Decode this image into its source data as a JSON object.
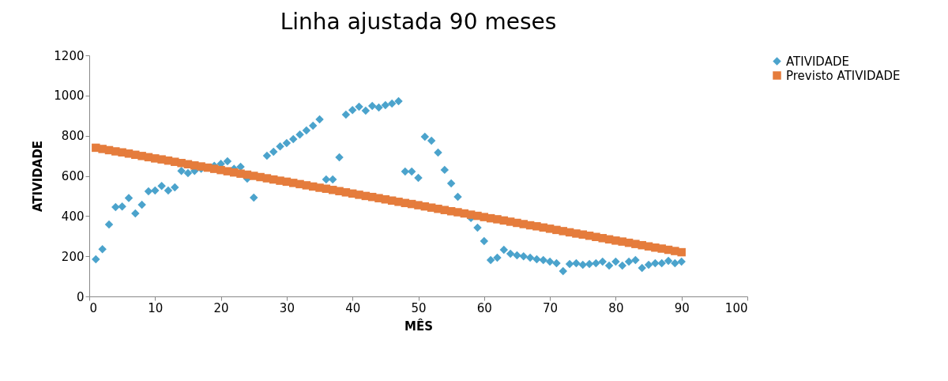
{
  "chart_data": {
    "type": "scatter",
    "title": "Linha ajustada 90 meses",
    "xlabel": "MÊS",
    "ylabel": "ATIVIDADE",
    "x": [
      1,
      2,
      3,
      4,
      5,
      6,
      7,
      8,
      9,
      10,
      11,
      12,
      13,
      14,
      15,
      16,
      17,
      18,
      19,
      20,
      21,
      22,
      23,
      24,
      25,
      26,
      27,
      28,
      29,
      30,
      31,
      32,
      33,
      34,
      35,
      36,
      37,
      38,
      39,
      40,
      41,
      42,
      43,
      44,
      45,
      46,
      47,
      48,
      49,
      50,
      51,
      52,
      53,
      54,
      55,
      56,
      57,
      58,
      59,
      60,
      61,
      62,
      63,
      64,
      65,
      66,
      67,
      68,
      69,
      70,
      71,
      72,
      73,
      74,
      75,
      76,
      77,
      78,
      79,
      80,
      81,
      82,
      83,
      84,
      85,
      86,
      87,
      88,
      89,
      90
    ],
    "series": [
      {
        "name": "ATIVIDADE",
        "color": "#4ba3cc",
        "marker": "diamond",
        "values": [
          185,
          235,
          358,
          445,
          448,
          490,
          413,
          456,
          523,
          527,
          550,
          527,
          543,
          625,
          614,
          625,
          635,
          null,
          650,
          660,
          673,
          635,
          645,
          586,
          492,
          null,
          700,
          720,
          747,
          763,
          783,
          806,
          826,
          850,
          881,
          582,
          582,
          692,
          905,
          928,
          944,
          925,
          948,
          940,
          952,
          960,
          972,
          622,
          622,
          590,
          795,
          775,
          716,
          630,
          563,
          496,
          null,
          390,
          342,
          275,
          181,
          193,
          232,
          212,
          205,
          200,
          193,
          185,
          181,
          173,
          165,
          126,
          161,
          165,
          157,
          161,
          165,
          173,
          153,
          173,
          153,
          173,
          181,
          142,
          157,
          165,
          165,
          177,
          165,
          173
        ]
      },
      {
        "name": "Previsto ATIVIDADE",
        "color": "#e57c3c",
        "marker": "square",
        "values": [
          740,
          734,
          728,
          722,
          717,
          711,
          705,
          699,
          693,
          687,
          682,
          676,
          670,
          664,
          658,
          652,
          647,
          641,
          635,
          629,
          623,
          617,
          611,
          606,
          600,
          594,
          588,
          582,
          576,
          571,
          565,
          559,
          553,
          547,
          541,
          536,
          530,
          524,
          518,
          512,
          506,
          500,
          495,
          489,
          483,
          477,
          471,
          465,
          460,
          454,
          448,
          442,
          436,
          430,
          424,
          419,
          413,
          407,
          401,
          395,
          389,
          384,
          378,
          372,
          366,
          360,
          354,
          349,
          343,
          337,
          331,
          325,
          319,
          313,
          308,
          302,
          296,
          290,
          284,
          278,
          273,
          267,
          261,
          255,
          249,
          243,
          238,
          232,
          226,
          220
        ]
      }
    ],
    "xlim": [
      0,
      100
    ],
    "xticks": [
      0,
      10,
      20,
      30,
      40,
      50,
      60,
      70,
      80,
      90,
      100
    ],
    "ylim": [
      0,
      1200
    ],
    "yticks": [
      0,
      200,
      400,
      600,
      800,
      1000,
      1200
    ],
    "grid": false,
    "legend": "right"
  }
}
